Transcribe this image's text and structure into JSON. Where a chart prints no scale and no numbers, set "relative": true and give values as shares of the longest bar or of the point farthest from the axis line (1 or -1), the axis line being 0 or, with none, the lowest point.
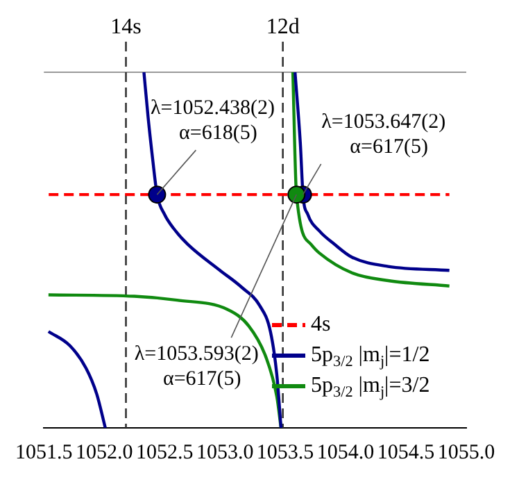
{
  "chart_data": {
    "type": "line",
    "relative": true,
    "xlim": [
      1051.5,
      1055
    ],
    "xticks": [
      {
        "value": 1051.5,
        "label": "1051.5"
      },
      {
        "value": 1052,
        "label": "1052.0"
      },
      {
        "value": 1052.5,
        "label": "1052.5"
      },
      {
        "value": 1053,
        "label": "1053.0"
      },
      {
        "value": 1053.5,
        "label": "1053.5"
      },
      {
        "value": 1054,
        "label": "1054.0"
      },
      {
        "value": 1054.5,
        "label": "1054.5"
      },
      {
        "value": 1055,
        "label": "1055.0"
      }
    ],
    "series": [
      {
        "name": "4s",
        "color": "#ff0000",
        "line_style": "dashed",
        "x": [
          1051.54,
          1054.86
        ],
        "values": [
          0.656,
          0.656
        ]
      },
      {
        "name": "5p$_{3/2}$ |m$_{j}$|=1/2",
        "color": "#00008b",
        "x": [
          1051.538,
          1051.716,
          1051.849,
          1051.938,
          1052.009,
          1052.2,
          1052.329,
          1052.364,
          1052.4,
          1052.438,
          1052.5,
          1052.577,
          1052.693,
          1052.959,
          1053.137,
          1053.288,
          1053.377,
          1053.43,
          1053.465,
          1053.5,
          1053.581,
          1053.625,
          1053.647,
          1053.687,
          1053.785,
          1053.909,
          1054.052,
          1054.353,
          1054.86
        ],
        "values": [
          0.271,
          0.231,
          0.168,
          0.095,
          0,
          null,
          1,
          0.872,
          0.76,
          0.656,
          0.6,
          0.56,
          0.516,
          0.443,
          0.396,
          0.344,
          0.271,
          0.15,
          0,
          null,
          1,
          0.8,
          0.656,
          0.6,
          0.553,
          0.516,
          0.48,
          0.454,
          0.443
        ]
      },
      {
        "name": "5p$_{3/2}$ |m$_{j}$|=3/2",
        "color": "#108a10",
        "x": [
          1051.538,
          1052.249,
          1052.604,
          1053.021,
          1053.199,
          1053.341,
          1053.43,
          1053.465,
          1053.5,
          1053.563,
          1053.593,
          1053.714,
          1053.785,
          1054.052,
          1054.353,
          1054.86
        ],
        "values": [
          0.374,
          0.37,
          0.359,
          0.333,
          0.286,
          0.198,
          0.088,
          0,
          null,
          1,
          0.656,
          0.516,
          0.491,
          0.436,
          0.414,
          0.399
        ]
      },
      {
        "type": "scatter",
        "marker": "circle",
        "color": "#00008b",
        "x": [
          1052.438,
          1053.647
        ],
        "values": [
          0.656,
          0.656
        ]
      },
      {
        "type": "scatter",
        "marker": "circle",
        "color": "#108a10",
        "x": [
          1053.593
        ],
        "values": [
          0.656
        ]
      }
    ],
    "ref_lines": [
      {
        "axis": "x",
        "value": 1052.18,
        "label": "14s",
        "color": "#333333",
        "line_style": "dashed"
      },
      {
        "axis": "x",
        "value": 1053.48,
        "label": "12d",
        "color": "#333333",
        "line_style": "dashed"
      }
    ],
    "annotations": [
      {
        "text": "λ=1052.438(2)\nα=618(5)",
        "x": 1052.438,
        "y": 0.656
      },
      {
        "text": "λ=1053.647(2)\nα=617(5)",
        "x": 1053.647,
        "y": 0.656
      },
      {
        "text": "λ=1053.593(2)\nα=617(5)",
        "x": 1053.593,
        "y": 0.656
      }
    ],
    "legend": "bottom right"
  }
}
